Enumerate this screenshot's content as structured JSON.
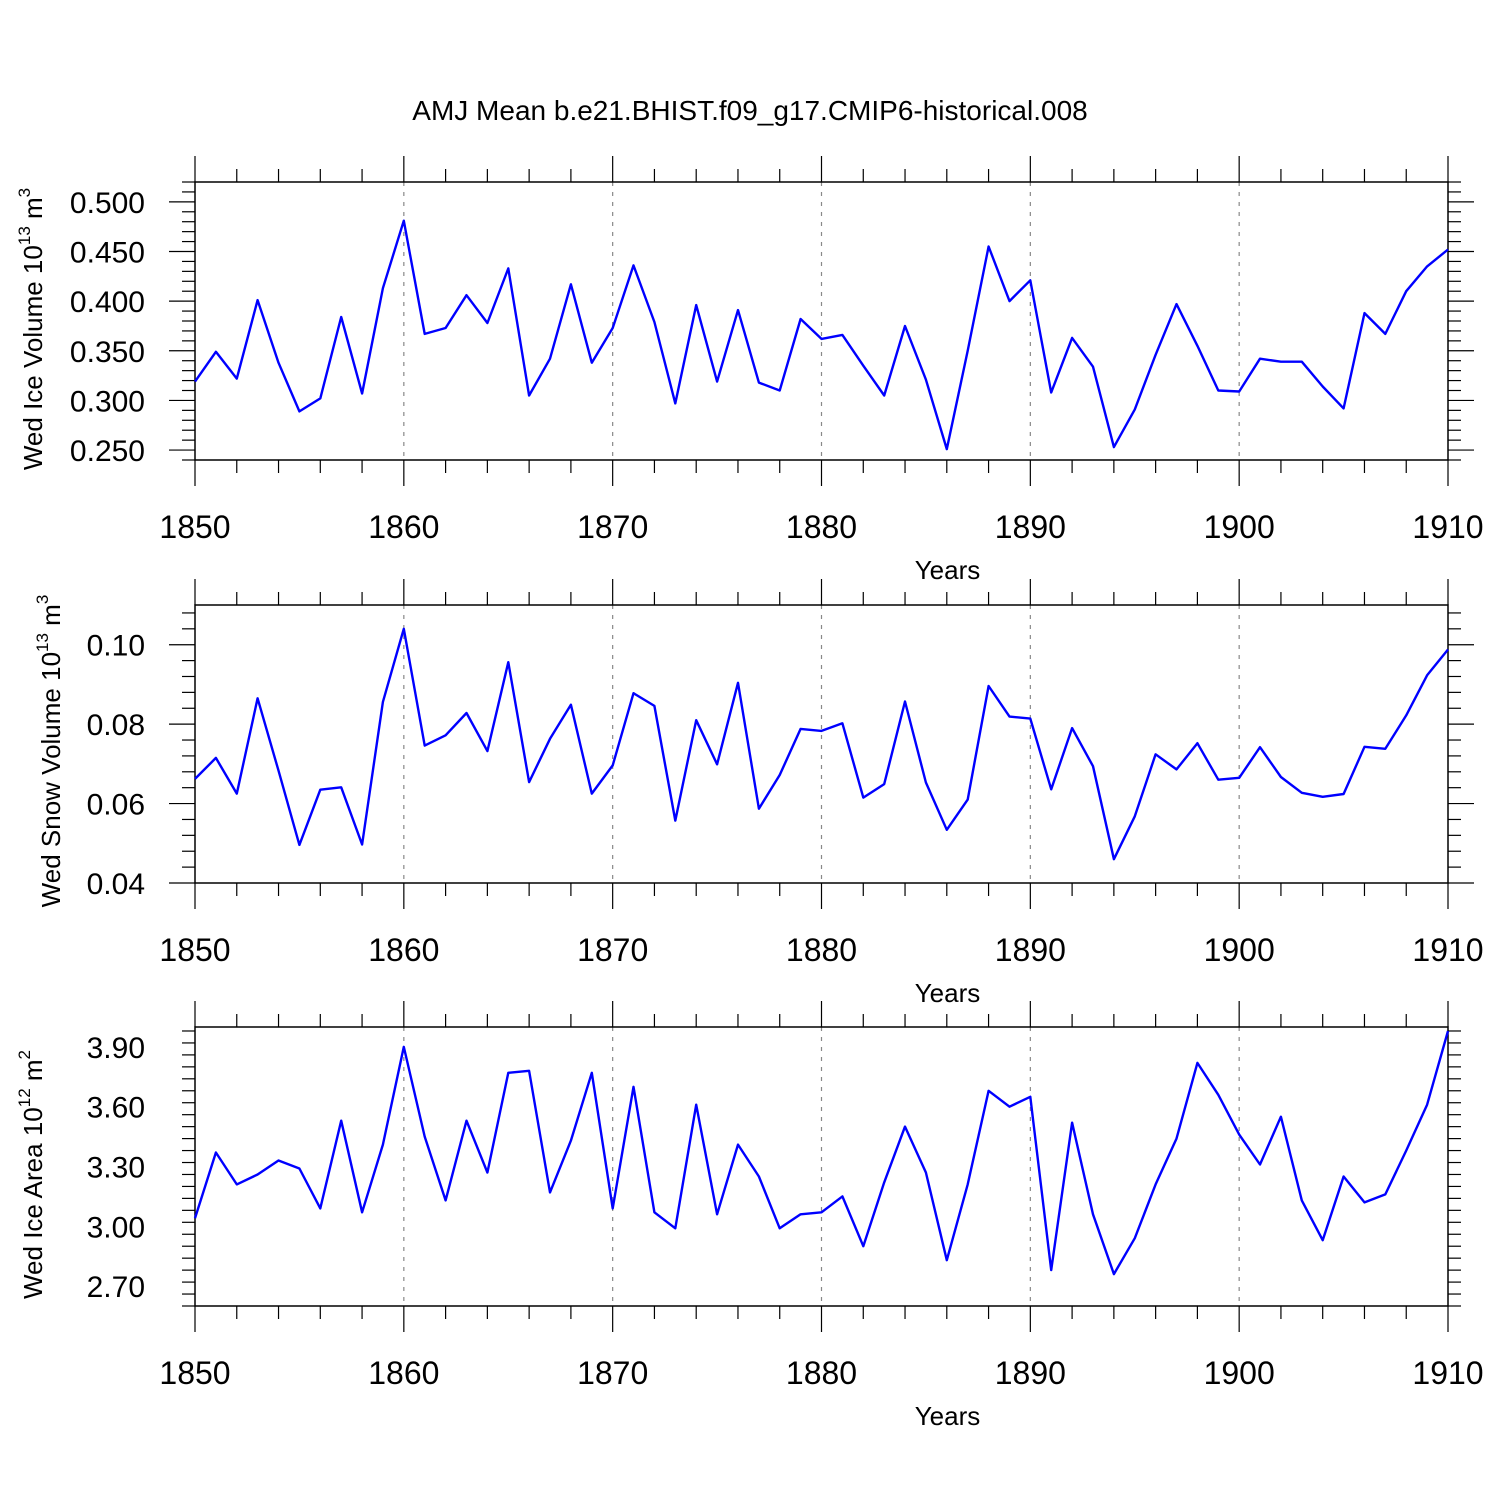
{
  "title": "AMJ Mean b.e21.BHIST.f09_g17.CMIP6-historical.008",
  "chart_data": [
    {
      "type": "line",
      "ylabel": "Wed Ice Volume 10",
      "ylabel_exp": "13",
      "ylabel_unit": " m",
      "ylabel_unit_exp": "3",
      "xlabel": "Years",
      "xlim": [
        1850,
        1910
      ],
      "ylim": [
        0.24,
        0.52
      ],
      "yticks": [
        0.25,
        0.3,
        0.35,
        0.4,
        0.45,
        0.5
      ],
      "ytick_labels": [
        "0.250",
        "0.300",
        "0.350",
        "0.400",
        "0.450",
        "0.500"
      ],
      "xticks": [
        1850,
        1860,
        1870,
        1880,
        1890,
        1900,
        1910
      ],
      "xtick_labels": [
        "1850",
        "1860",
        "1870",
        "1880",
        "1890",
        "1900",
        "1910"
      ],
      "color": "#0000ff",
      "x": [
        1850,
        1851,
        1852,
        1853,
        1854,
        1855,
        1856,
        1857,
        1858,
        1859,
        1860,
        1861,
        1862,
        1863,
        1864,
        1865,
        1866,
        1867,
        1868,
        1869,
        1870,
        1871,
        1872,
        1873,
        1874,
        1875,
        1876,
        1877,
        1878,
        1879,
        1880,
        1881,
        1882,
        1883,
        1884,
        1885,
        1886,
        1887,
        1888,
        1889,
        1890,
        1891,
        1892,
        1893,
        1894,
        1895,
        1896,
        1897,
        1898,
        1899,
        1900,
        1901,
        1902,
        1903,
        1904,
        1905,
        1906,
        1907,
        1908,
        1909,
        1910
      ],
      "values": [
        0.319,
        0.349,
        0.322,
        0.401,
        0.338,
        0.289,
        0.302,
        0.384,
        0.307,
        0.413,
        0.481,
        0.367,
        0.373,
        0.406,
        0.378,
        0.433,
        0.305,
        0.342,
        0.417,
        0.338,
        0.373,
        0.436,
        0.379,
        0.297,
        0.396,
        0.319,
        0.391,
        0.318,
        0.31,
        0.382,
        0.362,
        0.366,
        0.335,
        0.305,
        0.375,
        0.321,
        0.251,
        0.35,
        0.455,
        0.4,
        0.421,
        0.308,
        0.363,
        0.334,
        0.253,
        0.291,
        0.346,
        0.397,
        0.355,
        0.31,
        0.309,
        0.342,
        0.339,
        0.339,
        0.314,
        0.292,
        0.388,
        0.367,
        0.41,
        0.435,
        0.452
      ]
    },
    {
      "type": "line",
      "ylabel": "Wed Snow Volume 10",
      "ylabel_exp": "13",
      "ylabel_unit": " m",
      "ylabel_unit_exp": "3",
      "xlabel": "Years",
      "xlim": [
        1850,
        1910
      ],
      "ylim": [
        0.04,
        0.11
      ],
      "yticks": [
        0.04,
        0.06,
        0.08,
        0.1
      ],
      "ytick_labels": [
        "0.04",
        "0.06",
        "0.08",
        "0.10"
      ],
      "xticks": [
        1850,
        1860,
        1870,
        1880,
        1890,
        1900,
        1910
      ],
      "xtick_labels": [
        "1850",
        "1860",
        "1870",
        "1880",
        "1890",
        "1900",
        "1910"
      ],
      "color": "#0000ff",
      "x": [
        1850,
        1851,
        1852,
        1853,
        1854,
        1855,
        1856,
        1857,
        1858,
        1859,
        1860,
        1861,
        1862,
        1863,
        1864,
        1865,
        1866,
        1867,
        1868,
        1869,
        1870,
        1871,
        1872,
        1873,
        1874,
        1875,
        1876,
        1877,
        1878,
        1879,
        1880,
        1881,
        1882,
        1883,
        1884,
        1885,
        1886,
        1887,
        1888,
        1889,
        1890,
        1891,
        1892,
        1893,
        1894,
        1895,
        1896,
        1897,
        1898,
        1899,
        1900,
        1901,
        1902,
        1903,
        1904,
        1905,
        1906,
        1907,
        1908,
        1909,
        1910
      ],
      "values": [
        0.0662,
        0.0715,
        0.0625,
        0.0865,
        0.0683,
        0.0496,
        0.0635,
        0.0641,
        0.0497,
        0.0856,
        0.104,
        0.0746,
        0.0772,
        0.0828,
        0.0732,
        0.0956,
        0.0654,
        0.0763,
        0.0849,
        0.0625,
        0.0696,
        0.0878,
        0.0846,
        0.0557,
        0.081,
        0.0699,
        0.0904,
        0.0587,
        0.0672,
        0.0788,
        0.0783,
        0.0802,
        0.0615,
        0.0649,
        0.0857,
        0.0653,
        0.0534,
        0.061,
        0.0896,
        0.0819,
        0.0814,
        0.0636,
        0.079,
        0.0694,
        0.046,
        0.0568,
        0.0724,
        0.0686,
        0.0752,
        0.066,
        0.0665,
        0.0742,
        0.0667,
        0.0627,
        0.0617,
        0.0624,
        0.0743,
        0.0738,
        0.0822,
        0.0923,
        0.0988
      ]
    },
    {
      "type": "line",
      "ylabel": "Wed Ice Area 10",
      "ylabel_exp": "12",
      "ylabel_unit": " m",
      "ylabel_unit_exp": "2",
      "xlabel": "Years",
      "xlim": [
        1850,
        1910
      ],
      "ylim": [
        2.6,
        4.0
      ],
      "yticks": [
        2.7,
        3.0,
        3.3,
        3.6,
        3.9
      ],
      "ytick_labels": [
        "2.70",
        "3.00",
        "3.30",
        "3.60",
        "3.90"
      ],
      "xticks": [
        1850,
        1860,
        1870,
        1880,
        1890,
        1900,
        1910
      ],
      "xtick_labels": [
        "1850",
        "1860",
        "1870",
        "1880",
        "1890",
        "1900",
        "1910"
      ],
      "color": "#0000ff",
      "x": [
        1850,
        1851,
        1852,
        1853,
        1854,
        1855,
        1856,
        1857,
        1858,
        1859,
        1860,
        1861,
        1862,
        1863,
        1864,
        1865,
        1866,
        1867,
        1868,
        1869,
        1870,
        1871,
        1872,
        1873,
        1874,
        1875,
        1876,
        1877,
        1878,
        1879,
        1880,
        1881,
        1882,
        1883,
        1884,
        1885,
        1886,
        1887,
        1888,
        1889,
        1890,
        1891,
        1892,
        1893,
        1894,
        1895,
        1896,
        1897,
        1898,
        1899,
        1900,
        1901,
        1902,
        1903,
        1904,
        1905,
        1906,
        1907,
        1908,
        1909,
        1910
      ],
      "values": [
        3.04,
        3.37,
        3.21,
        3.26,
        3.33,
        3.29,
        3.09,
        3.53,
        3.07,
        3.41,
        3.9,
        3.45,
        3.13,
        3.53,
        3.27,
        3.77,
        3.78,
        3.17,
        3.43,
        3.77,
        3.09,
        3.7,
        3.07,
        2.99,
        3.61,
        3.06,
        3.41,
        3.25,
        2.99,
        3.06,
        3.07,
        3.15,
        2.9,
        3.22,
        3.5,
        3.27,
        2.83,
        3.21,
        3.68,
        3.6,
        3.65,
        2.78,
        3.52,
        3.06,
        2.76,
        2.94,
        3.21,
        3.44,
        3.82,
        3.66,
        3.46,
        3.31,
        3.55,
        3.13,
        2.93,
        3.25,
        3.12,
        3.16,
        3.38,
        3.61,
        3.98
      ]
    }
  ]
}
